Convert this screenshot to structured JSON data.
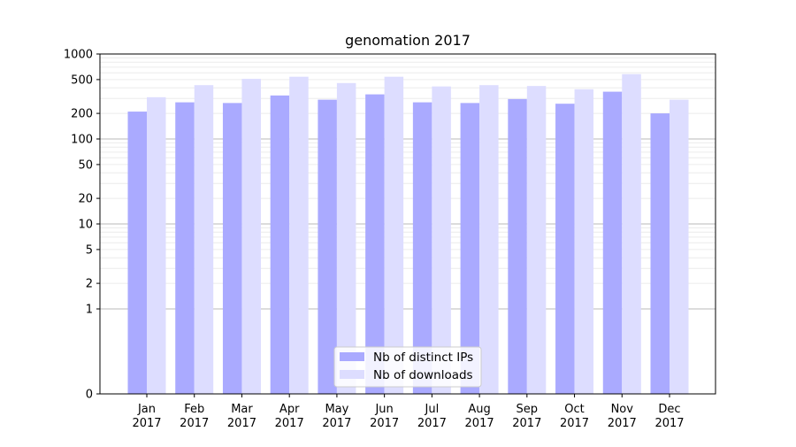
{
  "chart_data": {
    "type": "bar",
    "title": "genomation 2017",
    "xlabel": "",
    "ylabel": "",
    "yscale": "symlog",
    "ylim": [
      0,
      1000
    ],
    "y_ticks": [
      0,
      1,
      2,
      5,
      10,
      20,
      50,
      100,
      200,
      500,
      1000
    ],
    "grid": "horizontal",
    "legend_position": "lower-center",
    "categories": [
      {
        "month": "Jan",
        "year": "2017"
      },
      {
        "month": "Feb",
        "year": "2017"
      },
      {
        "month": "Mar",
        "year": "2017"
      },
      {
        "month": "Apr",
        "year": "2017"
      },
      {
        "month": "May",
        "year": "2017"
      },
      {
        "month": "Jun",
        "year": "2017"
      },
      {
        "month": "Jul",
        "year": "2017"
      },
      {
        "month": "Aug",
        "year": "2017"
      },
      {
        "month": "Sep",
        "year": "2017"
      },
      {
        "month": "Oct",
        "year": "2017"
      },
      {
        "month": "Nov",
        "year": "2017"
      },
      {
        "month": "Dec",
        "year": "2017"
      }
    ],
    "series": [
      {
        "name": "Nb of distinct IPs",
        "color": "#aaaaff",
        "values": [
          210,
          270,
          265,
          325,
          290,
          335,
          270,
          265,
          295,
          260,
          360,
          200
        ]
      },
      {
        "name": "Nb of downloads",
        "color": "#ddddff",
        "values": [
          310,
          430,
          510,
          540,
          455,
          540,
          415,
          430,
          420,
          385,
          580,
          290
        ]
      }
    ]
  }
}
